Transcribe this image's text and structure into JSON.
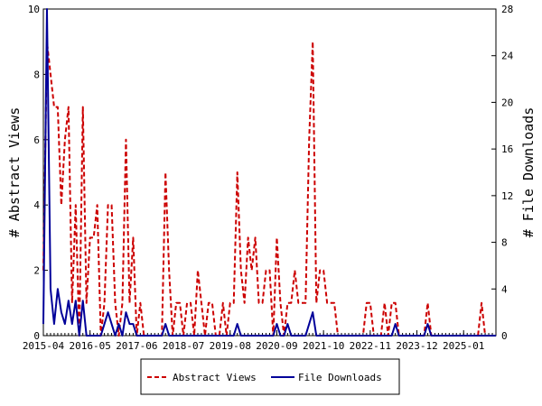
{
  "chart_data": {
    "type": "line",
    "title": "",
    "xlabel": "",
    "ylabel": "# Abstract Views",
    "y2label": "# File Downloads",
    "ylim": [
      0,
      10
    ],
    "y2lim": [
      0,
      28
    ],
    "yticks": [
      0,
      2,
      4,
      6,
      8,
      10
    ],
    "y2ticks": [
      0,
      4,
      8,
      12,
      16,
      20,
      24,
      28
    ],
    "x_start": "2015-04",
    "x_end": "2025-10",
    "xticks": [
      "2015-04",
      "2016-05",
      "2017-06",
      "2018-07",
      "2019-08",
      "2020-09",
      "2021-10",
      "2022-11",
      "2023-12",
      "2025-01"
    ],
    "grid": false,
    "legend_position": "bottom",
    "series": [
      {
        "name": "Abstract Views",
        "axis": "left",
        "color": "#cc0000",
        "dash": "dashed",
        "points": [
          [
            "2015-04",
            2
          ],
          [
            "2015-05",
            9
          ],
          [
            "2015-06",
            8
          ],
          [
            "2015-07",
            7
          ],
          [
            "2015-08",
            7
          ],
          [
            "2015-09",
            4
          ],
          [
            "2015-10",
            6
          ],
          [
            "2015-11",
            7
          ],
          [
            "2015-12",
            1
          ],
          [
            "2016-01",
            4
          ],
          [
            "2016-02",
            0
          ],
          [
            "2016-03",
            7
          ],
          [
            "2016-04",
            1
          ],
          [
            "2016-05",
            3
          ],
          [
            "2016-06",
            3
          ],
          [
            "2016-07",
            4
          ],
          [
            "2016-08",
            0
          ],
          [
            "2016-09",
            1
          ],
          [
            "2016-10",
            4
          ],
          [
            "2016-11",
            4
          ],
          [
            "2016-12",
            1
          ],
          [
            "2017-01",
            0
          ],
          [
            "2017-02",
            1
          ],
          [
            "2017-03",
            6
          ],
          [
            "2017-04",
            1
          ],
          [
            "2017-05",
            3
          ],
          [
            "2017-06",
            0
          ],
          [
            "2017-07",
            1
          ],
          [
            "2017-08",
            0
          ],
          [
            "2017-09",
            0
          ],
          [
            "2017-10",
            0
          ],
          [
            "2017-11",
            0
          ],
          [
            "2017-12",
            0
          ],
          [
            "2018-01",
            0
          ],
          [
            "2018-02",
            5
          ],
          [
            "2018-03",
            2
          ],
          [
            "2018-04",
            0
          ],
          [
            "2018-05",
            1
          ],
          [
            "2018-06",
            1
          ],
          [
            "2018-07",
            0
          ],
          [
            "2018-08",
            1
          ],
          [
            "2018-09",
            1
          ],
          [
            "2018-10",
            0
          ],
          [
            "2018-11",
            2
          ],
          [
            "2018-12",
            1
          ],
          [
            "2019-01",
            0
          ],
          [
            "2019-02",
            1
          ],
          [
            "2019-03",
            1
          ],
          [
            "2019-04",
            0
          ],
          [
            "2019-05",
            0
          ],
          [
            "2019-06",
            1
          ],
          [
            "2019-07",
            0
          ],
          [
            "2019-08",
            1
          ],
          [
            "2019-09",
            1
          ],
          [
            "2019-10",
            5
          ],
          [
            "2019-11",
            2
          ],
          [
            "2019-12",
            1
          ],
          [
            "2020-01",
            3
          ],
          [
            "2020-02",
            2
          ],
          [
            "2020-03",
            3
          ],
          [
            "2020-04",
            1
          ],
          [
            "2020-05",
            1
          ],
          [
            "2020-06",
            2
          ],
          [
            "2020-07",
            2
          ],
          [
            "2020-08",
            0
          ],
          [
            "2020-09",
            3
          ],
          [
            "2020-10",
            1
          ],
          [
            "2020-11",
            0
          ],
          [
            "2020-12",
            1
          ],
          [
            "2021-01",
            1
          ],
          [
            "2021-02",
            2
          ],
          [
            "2021-03",
            1
          ],
          [
            "2021-04",
            1
          ],
          [
            "2021-05",
            1
          ],
          [
            "2021-06",
            6
          ],
          [
            "2021-07",
            9
          ],
          [
            "2021-08",
            1
          ],
          [
            "2021-09",
            2
          ],
          [
            "2021-10",
            2
          ],
          [
            "2021-11",
            1
          ],
          [
            "2021-12",
            1
          ],
          [
            "2022-01",
            1
          ],
          [
            "2022-02",
            0
          ],
          [
            "2022-03",
            0
          ],
          [
            "2022-04",
            0
          ],
          [
            "2022-05",
            0
          ],
          [
            "2022-06",
            0
          ],
          [
            "2022-07",
            0
          ],
          [
            "2022-08",
            0
          ],
          [
            "2022-09",
            0
          ],
          [
            "2022-10",
            1
          ],
          [
            "2022-11",
            1
          ],
          [
            "2022-12",
            0
          ],
          [
            "2023-01",
            0
          ],
          [
            "2023-02",
            0
          ],
          [
            "2023-03",
            1
          ],
          [
            "2023-04",
            0
          ],
          [
            "2023-05",
            1
          ],
          [
            "2023-06",
            1
          ],
          [
            "2023-07",
            0
          ],
          [
            "2023-08",
            0
          ],
          [
            "2023-09",
            0
          ],
          [
            "2023-10",
            0
          ],
          [
            "2023-11",
            0
          ],
          [
            "2023-12",
            0
          ],
          [
            "2024-01",
            0
          ],
          [
            "2024-02",
            0
          ],
          [
            "2024-03",
            1
          ],
          [
            "2024-04",
            0
          ],
          [
            "2024-05",
            0
          ],
          [
            "2024-06",
            0
          ],
          [
            "2024-07",
            0
          ],
          [
            "2024-08",
            0
          ],
          [
            "2024-09",
            0
          ],
          [
            "2024-10",
            0
          ],
          [
            "2024-11",
            0
          ],
          [
            "2024-12",
            0
          ],
          [
            "2025-01",
            0
          ],
          [
            "2025-02",
            0
          ],
          [
            "2025-03",
            0
          ],
          [
            "2025-04",
            0
          ],
          [
            "2025-05",
            0
          ],
          [
            "2025-06",
            1
          ],
          [
            "2025-07",
            0
          ],
          [
            "2025-08",
            0
          ],
          [
            "2025-09",
            0
          ],
          [
            "2025-10",
            0
          ]
        ]
      },
      {
        "name": "File Downloads",
        "axis": "right",
        "color": "#000099",
        "dash": "solid",
        "points": [
          [
            "2015-04",
            1
          ],
          [
            "2015-05",
            28
          ],
          [
            "2015-06",
            4
          ],
          [
            "2015-07",
            1
          ],
          [
            "2015-08",
            4
          ],
          [
            "2015-09",
            2
          ],
          [
            "2015-10",
            1
          ],
          [
            "2015-11",
            3
          ],
          [
            "2015-12",
            1
          ],
          [
            "2016-01",
            3
          ],
          [
            "2016-02",
            0
          ],
          [
            "2016-03",
            3
          ],
          [
            "2016-04",
            0
          ],
          [
            "2016-05",
            0
          ],
          [
            "2016-06",
            0
          ],
          [
            "2016-07",
            0
          ],
          [
            "2016-08",
            0
          ],
          [
            "2016-09",
            1
          ],
          [
            "2016-10",
            2
          ],
          [
            "2016-11",
            1
          ],
          [
            "2016-12",
            0
          ],
          [
            "2017-01",
            1
          ],
          [
            "2017-02",
            0
          ],
          [
            "2017-03",
            2
          ],
          [
            "2017-04",
            1
          ],
          [
            "2017-05",
            1
          ],
          [
            "2017-06",
            0
          ],
          [
            "2017-07",
            0
          ],
          [
            "2017-08",
            0
          ],
          [
            "2017-09",
            0
          ],
          [
            "2017-10",
            0
          ],
          [
            "2017-11",
            0
          ],
          [
            "2017-12",
            0
          ],
          [
            "2018-01",
            0
          ],
          [
            "2018-02",
            1
          ],
          [
            "2018-03",
            0
          ],
          [
            "2018-04",
            0
          ],
          [
            "2018-05",
            0
          ],
          [
            "2018-06",
            0
          ],
          [
            "2018-07",
            0
          ],
          [
            "2018-08",
            0
          ],
          [
            "2018-09",
            0
          ],
          [
            "2018-10",
            0
          ],
          [
            "2018-11",
            0
          ],
          [
            "2018-12",
            0
          ],
          [
            "2019-01",
            0
          ],
          [
            "2019-02",
            0
          ],
          [
            "2019-03",
            0
          ],
          [
            "2019-04",
            0
          ],
          [
            "2019-05",
            0
          ],
          [
            "2019-06",
            0
          ],
          [
            "2019-07",
            0
          ],
          [
            "2019-08",
            0
          ],
          [
            "2019-09",
            0
          ],
          [
            "2019-10",
            1
          ],
          [
            "2019-11",
            0
          ],
          [
            "2019-12",
            0
          ],
          [
            "2020-01",
            0
          ],
          [
            "2020-02",
            0
          ],
          [
            "2020-03",
            0
          ],
          [
            "2020-04",
            0
          ],
          [
            "2020-05",
            0
          ],
          [
            "2020-06",
            0
          ],
          [
            "2020-07",
            0
          ],
          [
            "2020-08",
            0
          ],
          [
            "2020-09",
            1
          ],
          [
            "2020-10",
            0
          ],
          [
            "2020-11",
            0
          ],
          [
            "2020-12",
            1
          ],
          [
            "2021-01",
            0
          ],
          [
            "2021-02",
            0
          ],
          [
            "2021-03",
            0
          ],
          [
            "2021-04",
            0
          ],
          [
            "2021-05",
            0
          ],
          [
            "2021-06",
            1
          ],
          [
            "2021-07",
            2
          ],
          [
            "2021-08",
            0
          ],
          [
            "2021-09",
            0
          ],
          [
            "2021-10",
            0
          ],
          [
            "2021-11",
            0
          ],
          [
            "2021-12",
            0
          ],
          [
            "2022-01",
            0
          ],
          [
            "2022-02",
            0
          ],
          [
            "2022-03",
            0
          ],
          [
            "2022-04",
            0
          ],
          [
            "2022-05",
            0
          ],
          [
            "2022-06",
            0
          ],
          [
            "2022-07",
            0
          ],
          [
            "2022-08",
            0
          ],
          [
            "2022-09",
            0
          ],
          [
            "2022-10",
            0
          ],
          [
            "2022-11",
            0
          ],
          [
            "2022-12",
            0
          ],
          [
            "2023-01",
            0
          ],
          [
            "2023-02",
            0
          ],
          [
            "2023-03",
            0
          ],
          [
            "2023-04",
            0
          ],
          [
            "2023-05",
            0
          ],
          [
            "2023-06",
            1
          ],
          [
            "2023-07",
            0
          ],
          [
            "2023-08",
            0
          ],
          [
            "2023-09",
            0
          ],
          [
            "2023-10",
            0
          ],
          [
            "2023-11",
            0
          ],
          [
            "2023-12",
            0
          ],
          [
            "2024-01",
            0
          ],
          [
            "2024-02",
            0
          ],
          [
            "2024-03",
            1
          ],
          [
            "2024-04",
            0
          ],
          [
            "2024-05",
            0
          ],
          [
            "2024-06",
            0
          ],
          [
            "2024-07",
            0
          ],
          [
            "2024-08",
            0
          ],
          [
            "2024-09",
            0
          ],
          [
            "2024-10",
            0
          ],
          [
            "2024-11",
            0
          ],
          [
            "2024-12",
            0
          ],
          [
            "2025-01",
            0
          ],
          [
            "2025-02",
            0
          ],
          [
            "2025-03",
            0
          ],
          [
            "2025-04",
            0
          ],
          [
            "2025-05",
            0
          ],
          [
            "2025-06",
            0
          ],
          [
            "2025-07",
            0
          ],
          [
            "2025-08",
            0
          ],
          [
            "2025-09",
            0
          ],
          [
            "2025-10",
            0
          ]
        ]
      }
    ]
  }
}
